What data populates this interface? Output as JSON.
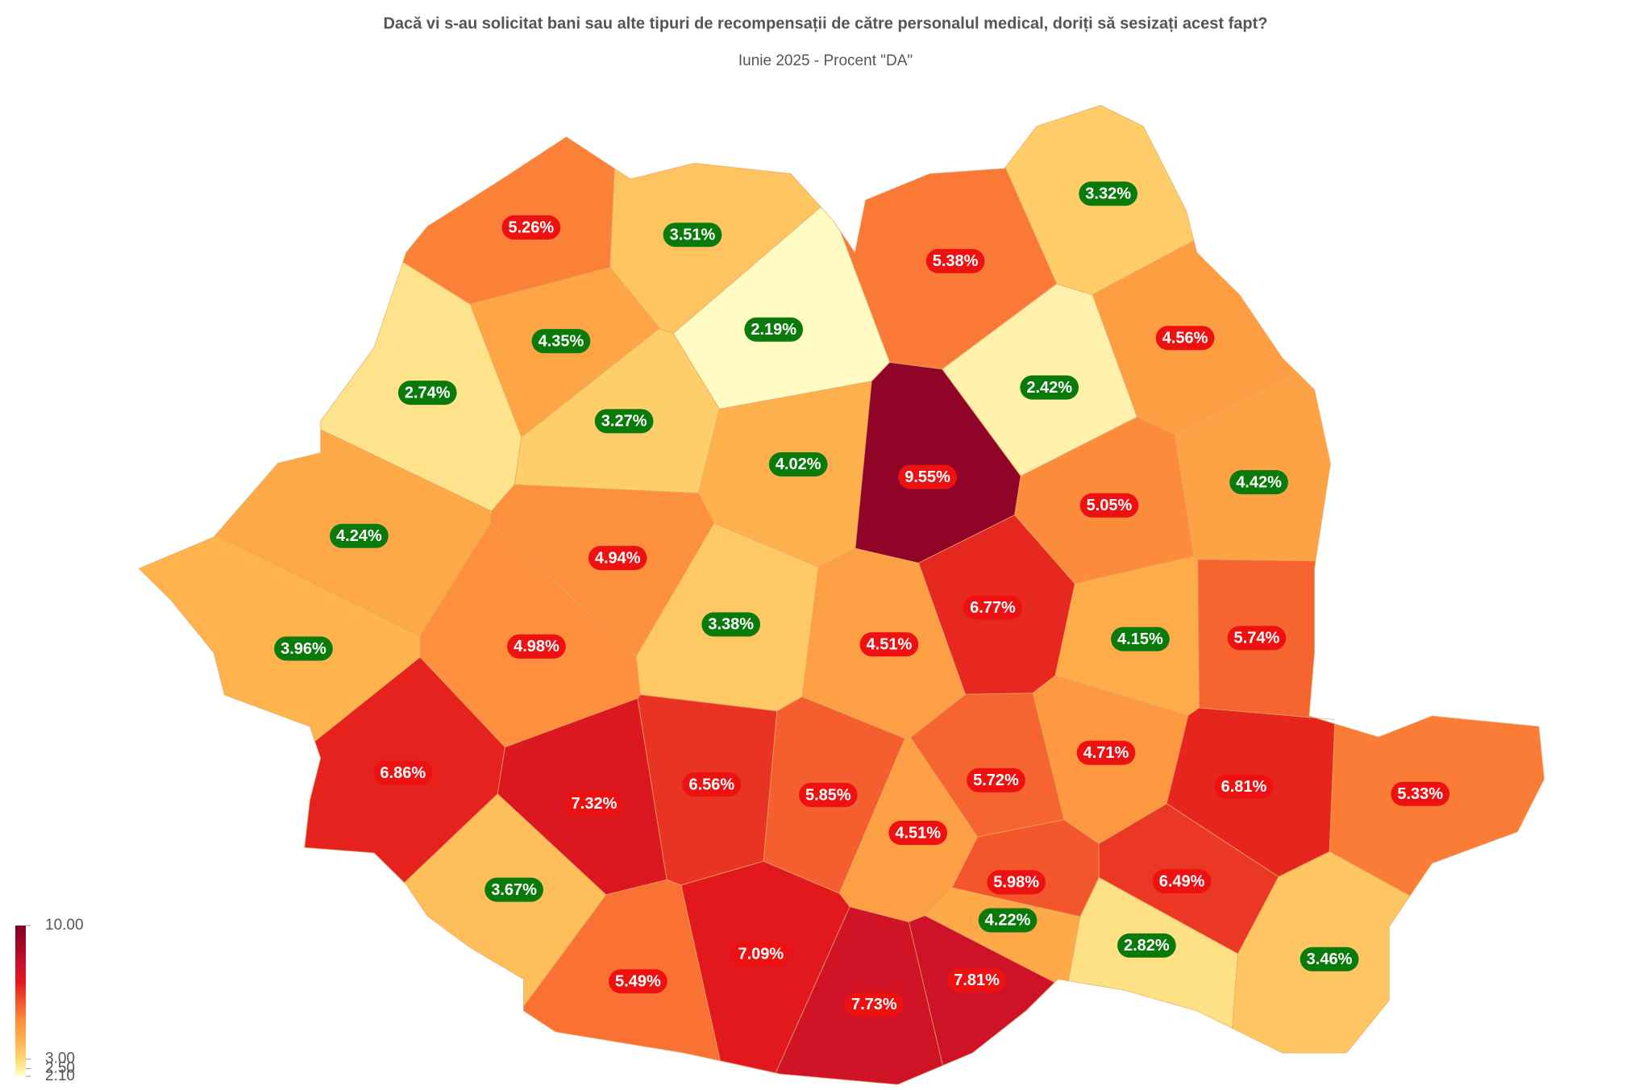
{
  "chart_data": {
    "type": "choropleth",
    "title": "Dacă vi s-au solicitat bani sau alte tipuri de recompensații de către personalul medical, doriți să sesizați acest fapt?",
    "subtitle": "Iunie 2025 - Procent \"DA\"",
    "values": [
      5.26,
      3.51,
      3.32,
      5.38,
      2.19,
      4.35,
      4.56,
      2.74,
      2.42,
      3.27,
      4.02,
      9.55,
      4.42,
      5.05,
      4.24,
      4.94,
      6.77,
      3.38,
      4.51,
      4.15,
      5.74,
      3.96,
      4.98,
      4.71,
      6.86,
      5.72,
      6.56,
      5.85,
      6.81,
      5.33,
      7.32,
      4.51,
      5.98,
      6.49,
      3.67,
      4.22,
      2.82,
      3.46,
      7.09,
      5.49,
      7.81,
      7.73
    ],
    "value_labels": [
      "5.26%",
      "3.51%",
      "3.32%",
      "5.38%",
      "2.19%",
      "4.35%",
      "4.56%",
      "2.74%",
      "2.42%",
      "3.27%",
      "4.02%",
      "9.55%",
      "4.42%",
      "5.05%",
      "4.24%",
      "4.94%",
      "6.77%",
      "3.38%",
      "4.51%",
      "4.15%",
      "5.74%",
      "3.96%",
      "4.98%",
      "4.71%",
      "6.86%",
      "5.72%",
      "6.56%",
      "5.85%",
      "6.81%",
      "5.33%",
      "7.32%",
      "4.51%",
      "5.98%",
      "6.49%",
      "3.67%",
      "4.22%",
      "2.82%",
      "3.46%",
      "7.09%",
      "5.49%",
      "7.81%",
      "7.73%"
    ],
    "value_label_colors": [
      "#ee1111",
      "#0a7a0a",
      "#0a7a0a",
      "#ee1111",
      "#0a7a0a",
      "#0a7a0a",
      "#ee1111",
      "#0a7a0a",
      "#0a7a0a",
      "#0a7a0a",
      "#0a7a0a",
      "#ee1111",
      "#0a7a0a",
      "#ee1111",
      "#0a7a0a",
      "#ee1111",
      "#ee1111",
      "#0a7a0a",
      "#ee1111",
      "#0a7a0a",
      "#ee1111",
      "#0a7a0a",
      "#ee1111",
      "#ee1111",
      "#ee1111",
      "#ee1111",
      "#ee1111",
      "#ee1111",
      "#ee1111",
      "#ee1111",
      "#ee1111",
      "#ee1111",
      "#ee1111",
      "#ee1111",
      "#0a7a0a",
      "#0a7a0a",
      "#0a7a0a",
      "#0a7a0a",
      "#ee1111",
      "#ee1111",
      "#ee1111",
      "#ee1111"
    ],
    "clim": [
      2.1,
      10
    ],
    "cticks": [
      {
        "value": 10,
        "label": "10.00"
      },
      {
        "value": 3,
        "label": "3.00"
      },
      {
        "value": 2.5,
        "label": "2.50"
      },
      {
        "value": 2.1,
        "label": "2.10"
      }
    ]
  }
}
